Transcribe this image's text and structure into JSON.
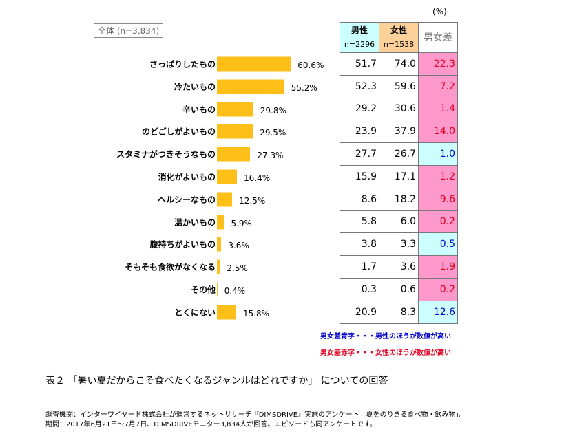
{
  "total_label": "全体 (n=3,834)",
  "unit": "(%)",
  "table_header": {
    "male": "男性",
    "male_n": "n=2296",
    "female": "女性",
    "female_n": "n=1538",
    "diff": "男女差"
  },
  "chart_data": {
    "type": "bar",
    "orientation": "horizontal",
    "categories": [
      "さっぱりしたもの",
      "冷たいもの",
      "辛いもの",
      "のどごしがよいもの",
      "スタミナがつきそうなもの",
      "消化がよいもの",
      "ヘルシーなもの",
      "温かいもの",
      "腹持ちがよいもの",
      "そもそも食欲がなくなる",
      "その他",
      "とくにない"
    ],
    "values": [
      60.6,
      55.2,
      29.8,
      29.5,
      27.3,
      16.4,
      12.5,
      5.9,
      3.6,
      2.5,
      0.4,
      15.8
    ],
    "value_labels": [
      "60.6%",
      "55.2%",
      "29.8%",
      "29.5%",
      "27.3%",
      "16.4%",
      "12.5%",
      "5.9%",
      "3.6%",
      "2.5%",
      "0.4%",
      "15.8%"
    ],
    "bar_color": "#fec018",
    "table": {
      "male": [
        "51.7",
        "52.3",
        "29.2",
        "23.9",
        "27.7",
        "15.9",
        "8.6",
        "5.8",
        "3.8",
        "1.7",
        "0.3",
        "20.9"
      ],
      "female": [
        "74.0",
        "59.6",
        "30.6",
        "37.9",
        "26.7",
        "17.1",
        "18.2",
        "6.0",
        "3.3",
        "3.6",
        "0.6",
        "8.3"
      ],
      "diff": [
        "22.3",
        "7.2",
        "1.4",
        "14.0",
        "1.0",
        "1.2",
        "9.6",
        "0.2",
        "0.5",
        "1.9",
        "0.2",
        "12.6"
      ],
      "diff_sign": [
        "f",
        "f",
        "f",
        "f",
        "m",
        "f",
        "f",
        "f",
        "m",
        "f",
        "f",
        "m"
      ]
    }
  },
  "notes": {
    "blue": "男女差青字・・・男性のほうが数値が高い",
    "red": "男女差赤字・・・女性のほうが数値が高い"
  },
  "caption": "表２ 「暑い夏だからこそ食べたくなるジャンルはどれですか」 についての回答",
  "footer": [
    "調査機関：インターワイヤード株式会社が運営するネットリサーチ『DIMSDRIVE』実施のアンケート「夏をのりきる食べ物・飲み物」。",
    "期間：2017年6月21日～7月7日、DIMSDRIVEモニター3,834人が回答。エピソードも同アンケートです。"
  ]
}
